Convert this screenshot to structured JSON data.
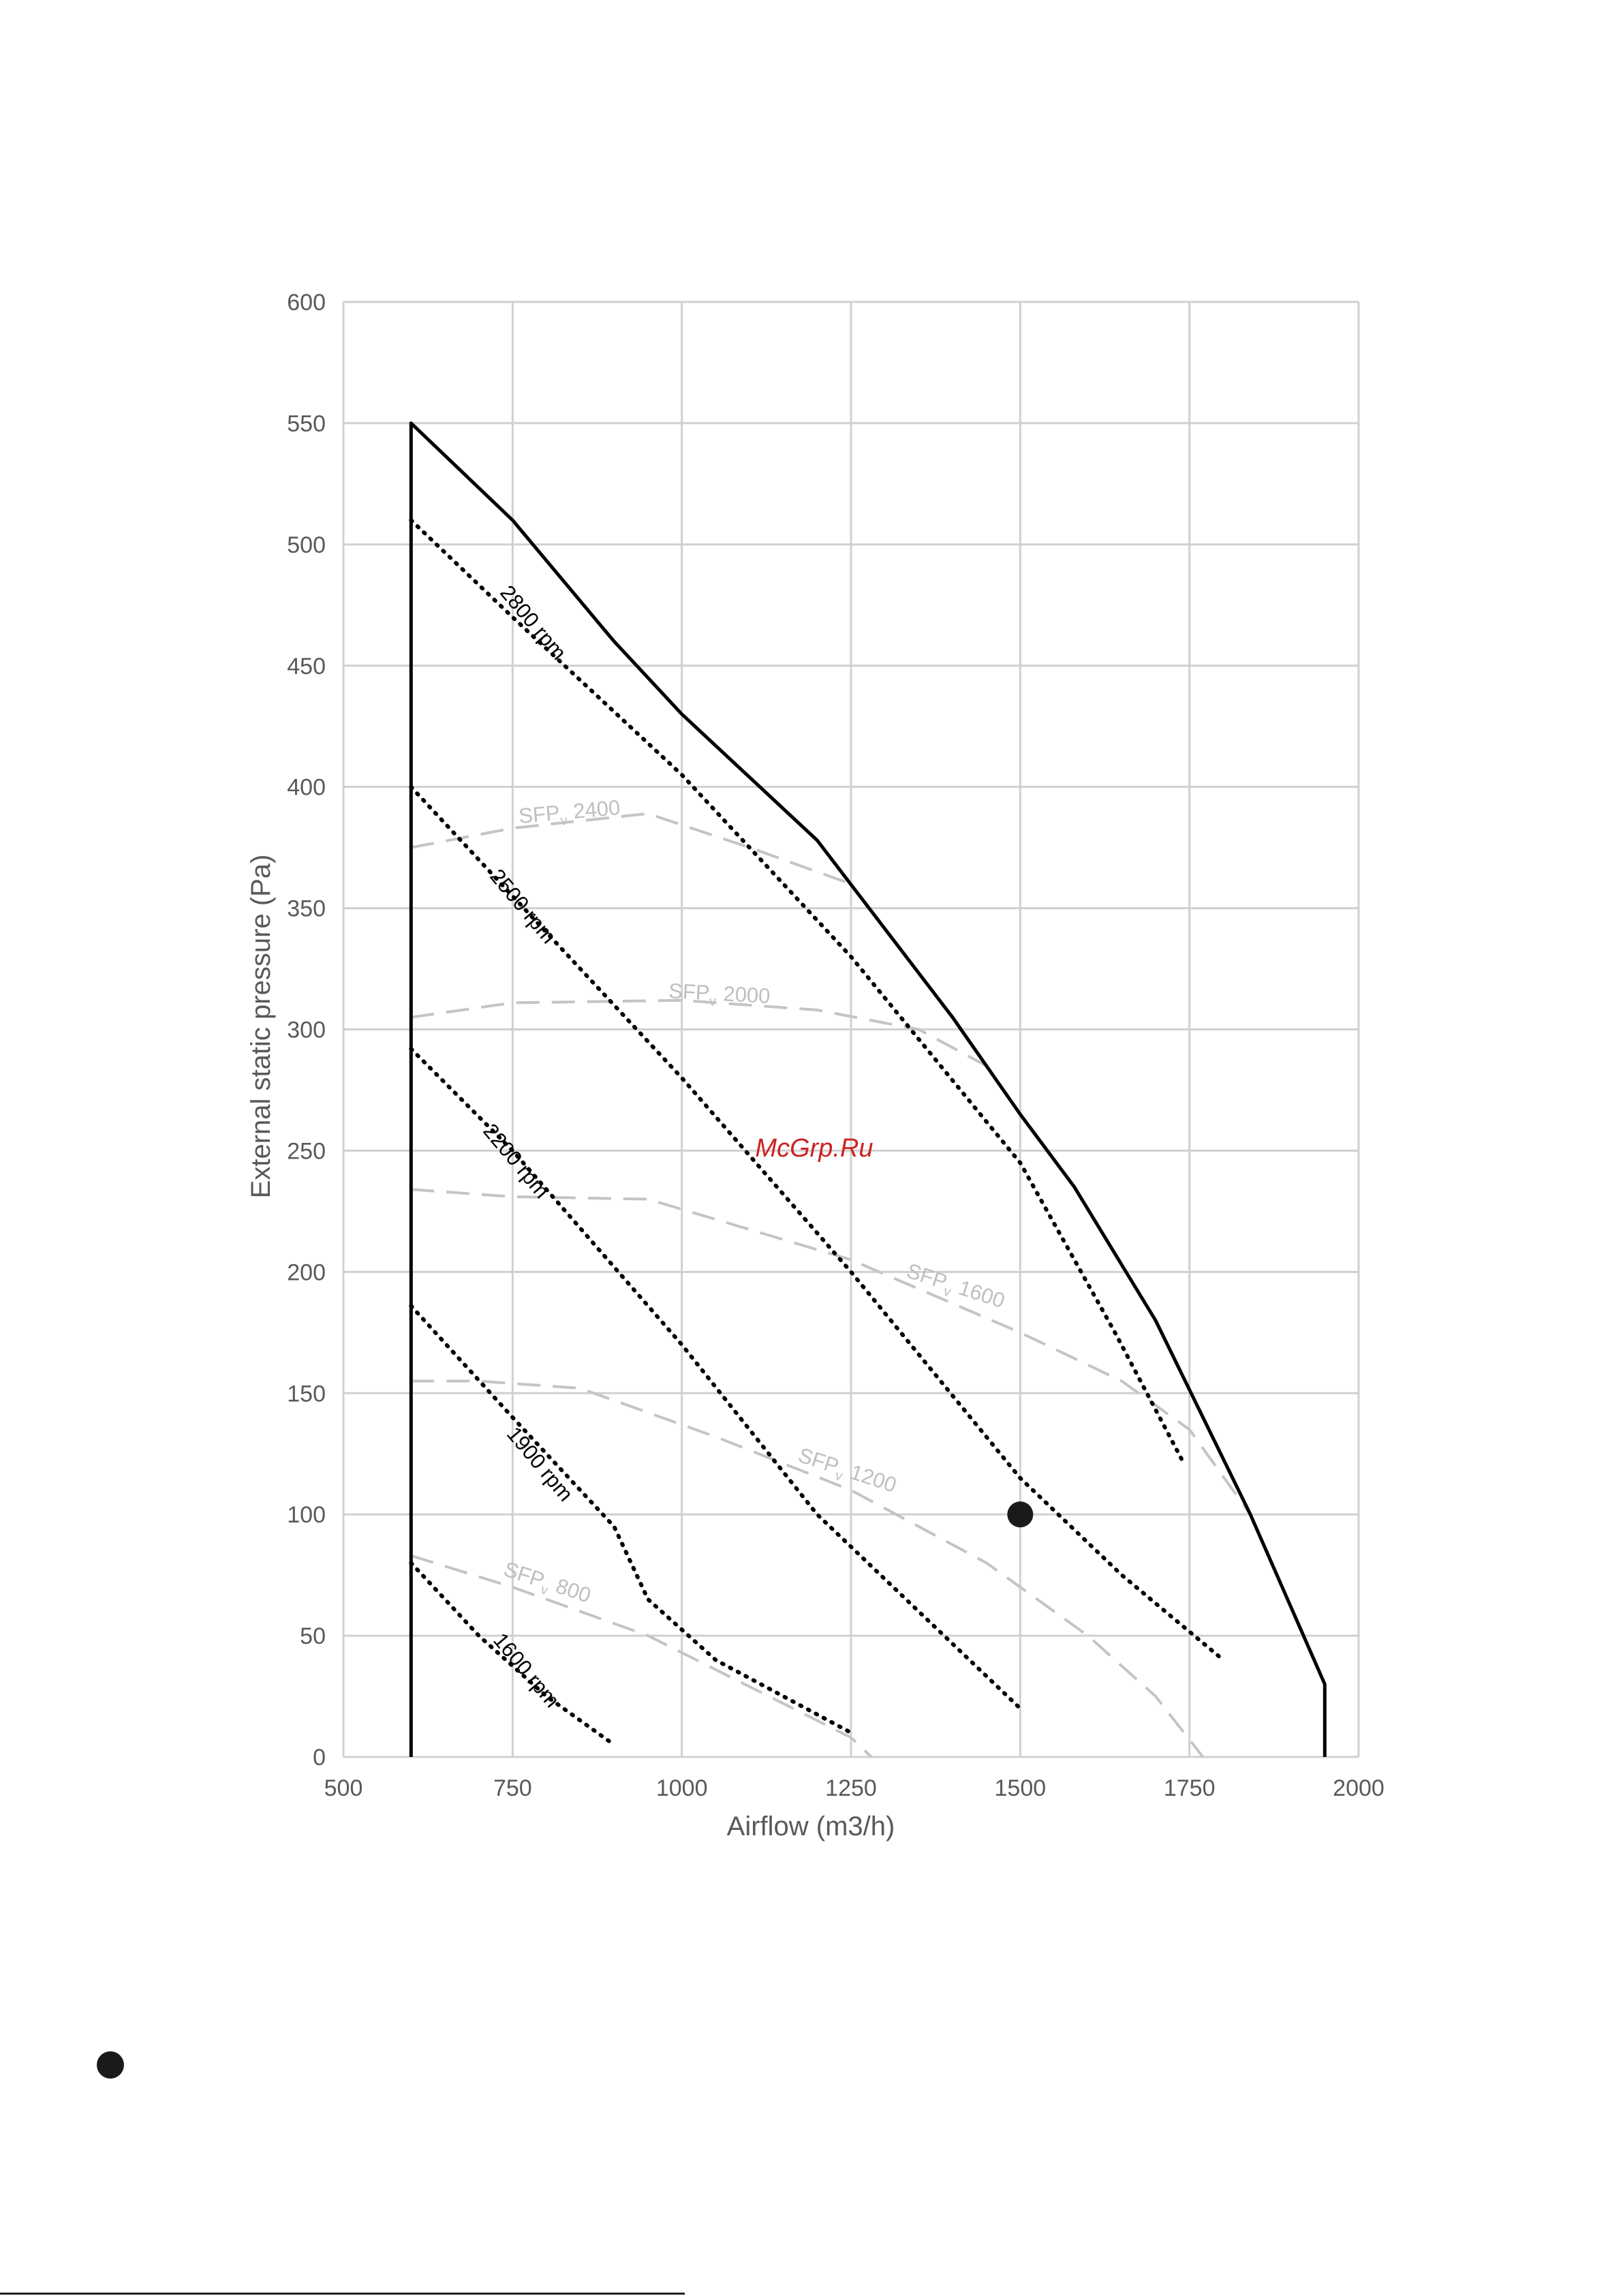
{
  "watermark": "McGrp.Ru",
  "chart_data": {
    "type": "line",
    "title": "",
    "xlabel": "Airflow (m3/h)",
    "ylabel": "External static pressure (Pa)",
    "xlim": [
      500,
      2000
    ],
    "ylim": [
      0,
      600
    ],
    "xticks": [
      500,
      750,
      1000,
      1250,
      1500,
      1750,
      2000
    ],
    "yticks": [
      0,
      50,
      100,
      150,
      200,
      250,
      300,
      350,
      400,
      450,
      500,
      550,
      600
    ],
    "grid": true,
    "colors": {
      "grid": "#d0d0d0",
      "envelope": "#000000",
      "rpm": "#000000",
      "sfp": "#c4c4c4",
      "tick": "#595959"
    },
    "envelope": {
      "x": [
        600,
        600,
        750,
        900,
        1000,
        1200,
        1400,
        1500,
        1580,
        1700,
        1840,
        1950,
        1950
      ],
      "y": [
        0,
        550,
        510,
        460,
        430,
        378,
        305,
        265,
        235,
        180,
        100,
        30,
        0
      ]
    },
    "rpm_curves": [
      {
        "label": "2800 rpm",
        "x": [
          600,
          750,
          1000,
          1250,
          1500,
          1640,
          1740
        ],
        "y": [
          510,
          470,
          405,
          330,
          245,
          175,
          122
        ]
      },
      {
        "label": "2500 rpm",
        "x": [
          600,
          750,
          1000,
          1250,
          1500,
          1650,
          1800
        ],
        "y": [
          400,
          355,
          280,
          200,
          115,
          75,
          40
        ]
      },
      {
        "label": "2200 rpm",
        "x": [
          600,
          750,
          1000,
          1200,
          1350,
          1500
        ],
        "y": [
          292,
          250,
          170,
          100,
          60,
          20
        ]
      },
      {
        "label": "1900 rpm",
        "x": [
          600,
          750,
          900,
          950,
          1050,
          1250
        ],
        "y": [
          186,
          140,
          95,
          65,
          40,
          10
        ]
      },
      {
        "label": "1600 rpm",
        "x": [
          600,
          700,
          800,
          900
        ],
        "y": [
          80,
          50,
          25,
          5
        ]
      }
    ],
    "sfp_curves": [
      {
        "label": "SFP",
        "sub": "v",
        "value": "2400",
        "x": [
          600,
          750,
          950,
          1100,
          1250
        ],
        "y": [
          375,
          383,
          389,
          375,
          360
        ]
      },
      {
        "label": "SFP",
        "sub": "v",
        "value": "2000",
        "x": [
          600,
          750,
          1000,
          1200,
          1350,
          1450
        ],
        "y": [
          305,
          311,
          312,
          308,
          300,
          285
        ]
      },
      {
        "label": "SFP",
        "sub": "v",
        "value": "1600",
        "x": [
          600,
          750,
          950,
          1250,
          1500,
          1650,
          1750,
          1840
        ],
        "y": [
          234,
          231,
          230,
          205,
          175,
          155,
          135,
          100
        ]
      },
      {
        "label": "SFP",
        "sub": "v",
        "value": "1200",
        "x": [
          600,
          700,
          850,
          1050,
          1250,
          1450,
          1600,
          1700,
          1770
        ],
        "y": [
          155,
          155,
          152,
          132,
          110,
          80,
          50,
          25,
          0
        ]
      },
      {
        "label": "SFP",
        "sub": "v",
        "value": "800",
        "x": [
          600,
          750,
          950,
          1150,
          1250,
          1280
        ],
        "y": [
          83,
          70,
          50,
          22,
          8,
          0
        ]
      }
    ],
    "operating_point": {
      "x": 1500,
      "y": 100
    }
  }
}
